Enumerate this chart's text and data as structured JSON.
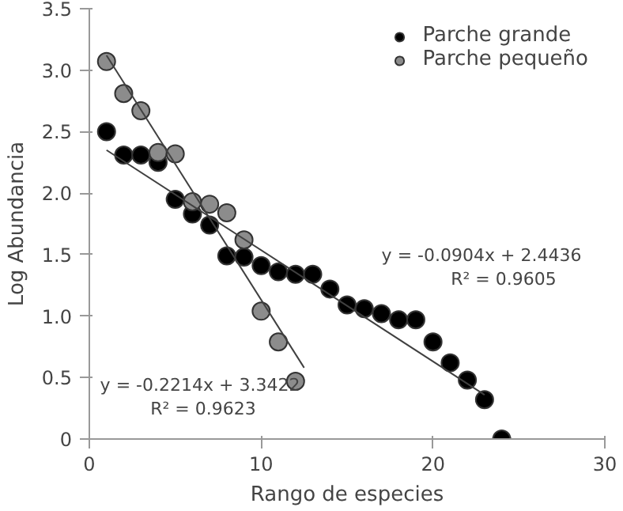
{
  "chart_data": {
    "type": "scatter",
    "xlabel": "Rango de especies",
    "ylabel": "Log Abundancia",
    "xlim": [
      0,
      30
    ],
    "ylim": [
      0,
      3.5
    ],
    "xticks": [
      0,
      10,
      20,
      30
    ],
    "yticks": [
      0,
      0.5,
      {
        "value": 1,
        "label": "1.0"
      },
      1.5,
      {
        "value": 2,
        "label": "2.0"
      },
      2.5,
      {
        "value": 3,
        "label": "3.0"
      },
      3.5
    ],
    "grid": false,
    "legend": "top right",
    "marker": "circle",
    "series": [
      {
        "name": "Parche grande",
        "color": "#000000",
        "x": [
          1,
          2,
          3,
          4,
          5,
          6,
          7,
          8,
          9,
          10,
          11,
          12,
          13,
          14,
          15,
          16,
          17,
          18,
          19,
          20,
          21,
          22,
          23,
          24
        ],
        "values": [
          2.5,
          2.31,
          2.31,
          2.25,
          1.95,
          1.83,
          1.74,
          1.49,
          1.48,
          1.41,
          1.36,
          1.34,
          1.34,
          1.22,
          1.09,
          1.06,
          1.02,
          0.97,
          0.97,
          0.79,
          0.62,
          0.48,
          0.32,
          0.0
        ]
      },
      {
        "name": "Parche pequeño",
        "color": "#8c8c8c",
        "x": [
          1,
          2,
          3,
          4,
          5,
          6,
          7,
          8,
          9,
          10,
          11,
          12
        ],
        "values": [
          3.07,
          2.81,
          2.67,
          2.33,
          2.32,
          1.93,
          1.91,
          1.84,
          1.62,
          1.04,
          0.79,
          0.47
        ]
      },
      {
        "type": "line",
        "color": "#404040",
        "marker": "none",
        "x": [
          1,
          23
        ],
        "values": [
          2.35,
          0.36
        ]
      },
      {
        "type": "line",
        "color": "#404040",
        "marker": "none",
        "x": [
          1,
          12.5
        ],
        "values": [
          3.12,
          0.58
        ]
      }
    ],
    "annotations": [
      "y = -0.0904x + 2.4436",
      "R² = 0.9605",
      "y = -0.2214x + 3.3422",
      "R² = 0.9623"
    ]
  }
}
